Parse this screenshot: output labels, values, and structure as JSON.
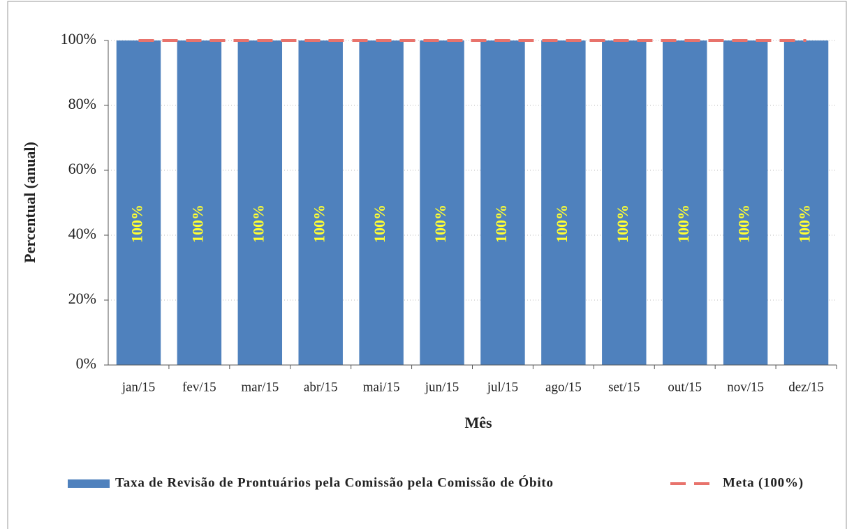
{
  "chart_data": {
    "type": "bar",
    "categories": [
      "jan/15",
      "fev/15",
      "mar/15",
      "abr/15",
      "mai/15",
      "jun/15",
      "jul/15",
      "ago/15",
      "set/15",
      "out/15",
      "nov/15",
      "dez/15"
    ],
    "series": [
      {
        "name": "Taxa de Revisão de Prontuários pela Comissão pela Comissão de Óbito",
        "type": "bar",
        "color": "#4f81bd",
        "values": [
          100,
          100,
          100,
          100,
          100,
          100,
          100,
          100,
          100,
          100,
          100,
          100
        ],
        "value_labels": [
          "100%",
          "100%",
          "100%",
          "100%",
          "100%",
          "100%",
          "100%",
          "100%",
          "100%",
          "100%",
          "100%",
          "100%"
        ]
      },
      {
        "name": "Meta (100%)",
        "type": "line",
        "color": "#e8736c",
        "values": [
          100,
          100,
          100,
          100,
          100,
          100,
          100,
          100,
          100,
          100,
          100,
          100
        ]
      }
    ],
    "x_label": "Mês",
    "y_label": "Percentual (anual)",
    "ylim": [
      0,
      100
    ],
    "yticks": [
      {
        "value": 0,
        "label": "0%"
      },
      {
        "value": 20,
        "label": "20%"
      },
      {
        "value": 40,
        "label": "40%"
      },
      {
        "value": 60,
        "label": "60%"
      },
      {
        "value": 80,
        "label": "80%"
      },
      {
        "value": 100,
        "label": "100%"
      }
    ],
    "grid": true,
    "legend": "bottom",
    "value_label_color": "#ffff33"
  }
}
